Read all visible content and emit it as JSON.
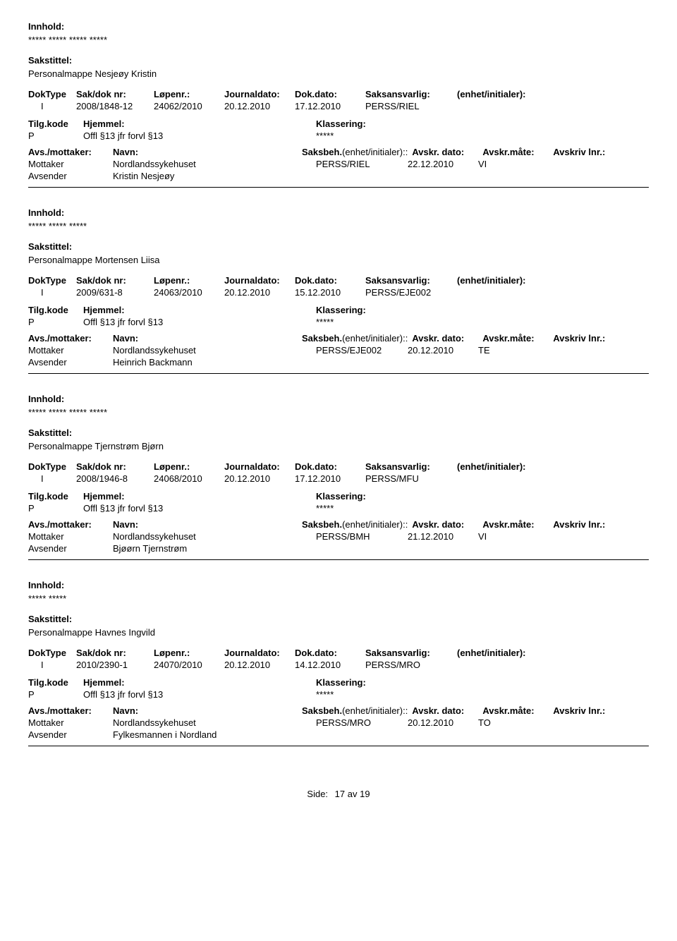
{
  "labels": {
    "innhold": "Innhold:",
    "sakstittel": "Sakstittel:",
    "dokType": "DokType",
    "sakDokNr": "Sak/dok nr:",
    "lopenr": "Løpenr.:",
    "journaldato": "Journaldato:",
    "dokDato": "Dok.dato:",
    "saksansvarlig": "Saksansvarlig:",
    "enhetInitialer": "(enhet/initialer):",
    "tilgKode": "Tilg.kode",
    "hjemmel": "Hjemmel:",
    "klassering": "Klassering:",
    "avsMottaker": "Avs./mottaker:",
    "navn": "Navn:",
    "saksbeh": "Saksbeh.",
    "enhetInit2": "(enhet/initialer):",
    "avskrDato": "Avskr. dato:",
    "avskrMate": "Avskr.måte:",
    "avskrivLnr": "Avskriv lnr.:",
    "mottaker": "Mottaker",
    "avsender": "Avsender",
    "side": "Side:",
    "av": "av"
  },
  "entries": [
    {
      "innhold": "***** ***** ***** *****",
      "sakstittel": "Personalmappe Nesjeøy Kristin",
      "dokType": "I",
      "sakDokNr": "2008/1848-12",
      "lopenr": "24062/2010",
      "journaldato": "20.12.2010",
      "dokDato": "17.12.2010",
      "saksansvarlig": "PERSS/RIEL",
      "tilgKode": "P",
      "hjemmel": "Offl §13 jfr forvl §13",
      "klassering": "*****",
      "mottakerName": "Nordlandssykehuset",
      "saksbehVal": "PERSS/RIEL",
      "avskrDato": "22.12.2010",
      "avskrMate": "VI",
      "avsenderName": "Kristin Nesjeøy"
    },
    {
      "innhold": "***** ***** *****",
      "sakstittel": "Personalmappe Mortensen Liisa",
      "dokType": "I",
      "sakDokNr": "2009/631-8",
      "lopenr": "24063/2010",
      "journaldato": "20.12.2010",
      "dokDato": "15.12.2010",
      "saksansvarlig": "PERSS/EJE002",
      "tilgKode": "P",
      "hjemmel": "Offl §13 jfr forvl §13",
      "klassering": "*****",
      "mottakerName": "Nordlandssykehuset",
      "saksbehVal": "PERSS/EJE002",
      "avskrDato": "20.12.2010",
      "avskrMate": "TE",
      "avsenderName": "Heinrich Backmann"
    },
    {
      "innhold": "***** ***** ***** *****",
      "sakstittel": "Personalmappe Tjernstrøm Bjørn",
      "dokType": "I",
      "sakDokNr": "2008/1946-8",
      "lopenr": "24068/2010",
      "journaldato": "20.12.2010",
      "dokDato": "17.12.2010",
      "saksansvarlig": "PERSS/MFU",
      "tilgKode": "P",
      "hjemmel": "Offl §13 jfr forvl §13",
      "klassering": "*****",
      "mottakerName": "Nordlandssykehuset",
      "saksbehVal": "PERSS/BMH",
      "avskrDato": "21.12.2010",
      "avskrMate": "VI",
      "avsenderName": "Bjøørn Tjernstrøm"
    },
    {
      "innhold": "***** *****",
      "sakstittel": "Personalmappe Havnes Ingvild",
      "dokType": "I",
      "sakDokNr": "2010/2390-1",
      "lopenr": "24070/2010",
      "journaldato": "20.12.2010",
      "dokDato": "14.12.2010",
      "saksansvarlig": "PERSS/MRO",
      "tilgKode": "P",
      "hjemmel": "Offl §13 jfr forvl §13",
      "klassering": "*****",
      "mottakerName": "Nordlandssykehuset",
      "saksbehVal": "PERSS/MRO",
      "avskrDato": "20.12.2010",
      "avskrMate": "TO",
      "avsenderName": "Fylkesmannen i Nordland"
    }
  ],
  "footer": {
    "pageCurrent": "17",
    "pageTotal": "19"
  }
}
